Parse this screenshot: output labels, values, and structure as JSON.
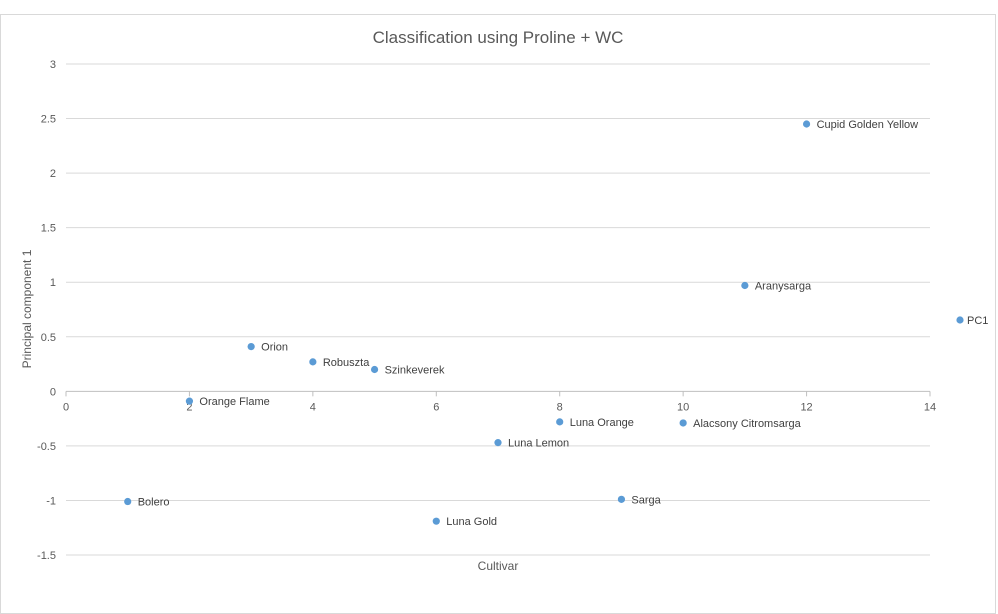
{
  "chart_data": {
    "type": "scatter",
    "title": "Classification using Proline + WC",
    "xlabel": "Cultivar",
    "ylabel": "Principal component 1",
    "xlim": [
      0,
      14
    ],
    "ylim": [
      -1.5,
      3
    ],
    "x_ticks": [
      0,
      2,
      4,
      6,
      8,
      10,
      12,
      14
    ],
    "y_ticks": [
      -1.5,
      -1,
      -0.5,
      0,
      0.5,
      1,
      1.5,
      2,
      2.5,
      3
    ],
    "y_tick_labels": [
      "-1.5",
      "-1",
      "-0.5",
      "0",
      "0.5",
      "1",
      "1.5",
      "2",
      "2.5",
      "3"
    ],
    "grid": "horizontal",
    "legend_position": "right",
    "point_color": "#5b9bd5",
    "series": [
      {
        "name": "PC1",
        "points": [
          {
            "x": 1,
            "y": -1.01,
            "label": "Bolero"
          },
          {
            "x": 2,
            "y": -0.09,
            "label": "Orange Flame"
          },
          {
            "x": 3,
            "y": 0.41,
            "label": "Orion"
          },
          {
            "x": 4,
            "y": 0.27,
            "label": "Robuszta"
          },
          {
            "x": 5,
            "y": 0.2,
            "label": "Szinkeverek"
          },
          {
            "x": 6,
            "y": -1.19,
            "label": "Luna Gold"
          },
          {
            "x": 7,
            "y": -0.47,
            "label": "Luna Lemon"
          },
          {
            "x": 8,
            "y": -0.28,
            "label": "Luna Orange"
          },
          {
            "x": 9,
            "y": -0.99,
            "label": "Sarga"
          },
          {
            "x": 10,
            "y": -0.29,
            "label": "Alacsony Citromsarga"
          },
          {
            "x": 11,
            "y": 0.97,
            "label": "Aranysarga"
          },
          {
            "x": 12,
            "y": 2.45,
            "label": "Cupid Golden Yellow"
          }
        ]
      }
    ]
  }
}
